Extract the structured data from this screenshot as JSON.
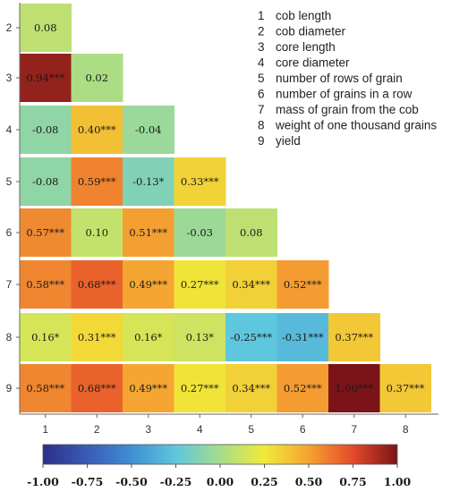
{
  "chart_data": {
    "type": "heatmap",
    "title": "",
    "xlabel": "",
    "ylabel": "",
    "x_ticks": [
      "1",
      "2",
      "3",
      "4",
      "5",
      "6",
      "7",
      "8"
    ],
    "y_ticks": [
      "2",
      "3",
      "4",
      "5",
      "6",
      "7",
      "8",
      "9"
    ],
    "legend": [
      {
        "num": "1",
        "label": "cob length"
      },
      {
        "num": "2",
        "label": "cob diameter"
      },
      {
        "num": "3",
        "label": "core length"
      },
      {
        "num": "4",
        "label": "core diameter"
      },
      {
        "num": "5",
        "label": "number of rows of grain"
      },
      {
        "num": "6",
        "label": "number of grains in a row"
      },
      {
        "num": "7",
        "label": "mass of grain from the cob"
      },
      {
        "num": "8",
        "label": "weight of one thousand grains"
      },
      {
        "num": "9",
        "label": "yield"
      }
    ],
    "rows": [
      {
        "y": "2",
        "cells": [
          {
            "x": "1",
            "value": 0.08,
            "text": "0.08"
          }
        ]
      },
      {
        "y": "3",
        "cells": [
          {
            "x": "1",
            "value": 0.94,
            "text": "0.94***"
          },
          {
            "x": "2",
            "value": 0.02,
            "text": "0.02"
          }
        ]
      },
      {
        "y": "4",
        "cells": [
          {
            "x": "1",
            "value": -0.08,
            "text": "-0.08"
          },
          {
            "x": "2",
            "value": 0.4,
            "text": "0.40***"
          },
          {
            "x": "3",
            "value": -0.04,
            "text": "-0.04"
          }
        ]
      },
      {
        "y": "5",
        "cells": [
          {
            "x": "1",
            "value": -0.08,
            "text": "-0.08"
          },
          {
            "x": "2",
            "value": 0.59,
            "text": "0.59***"
          },
          {
            "x": "3",
            "value": -0.13,
            "text": "-0.13*"
          },
          {
            "x": "4",
            "value": 0.33,
            "text": "0.33***"
          }
        ]
      },
      {
        "y": "6",
        "cells": [
          {
            "x": "1",
            "value": 0.57,
            "text": "0.57***"
          },
          {
            "x": "2",
            "value": 0.1,
            "text": "0.10"
          },
          {
            "x": "3",
            "value": 0.51,
            "text": "0.51***"
          },
          {
            "x": "4",
            "value": -0.03,
            "text": "-0.03"
          },
          {
            "x": "5",
            "value": 0.08,
            "text": "0.08"
          }
        ]
      },
      {
        "y": "7",
        "cells": [
          {
            "x": "1",
            "value": 0.58,
            "text": "0.58***"
          },
          {
            "x": "2",
            "value": 0.68,
            "text": "0.68***"
          },
          {
            "x": "3",
            "value": 0.49,
            "text": "0.49***"
          },
          {
            "x": "4",
            "value": 0.27,
            "text": "0.27***"
          },
          {
            "x": "5",
            "value": 0.34,
            "text": "0.34***"
          },
          {
            "x": "6",
            "value": 0.52,
            "text": "0.52***"
          }
        ]
      },
      {
        "y": "8",
        "cells": [
          {
            "x": "1",
            "value": 0.16,
            "text": "0.16*"
          },
          {
            "x": "2",
            "value": 0.31,
            "text": "0.31***"
          },
          {
            "x": "3",
            "value": 0.16,
            "text": "0.16*"
          },
          {
            "x": "4",
            "value": 0.13,
            "text": "0.13*"
          },
          {
            "x": "5",
            "value": -0.25,
            "text": "-0.25***"
          },
          {
            "x": "6",
            "value": -0.31,
            "text": "-0.31***"
          },
          {
            "x": "7",
            "value": 0.37,
            "text": "0.37***"
          }
        ]
      },
      {
        "y": "9",
        "cells": [
          {
            "x": "1",
            "value": 0.58,
            "text": "0.58***"
          },
          {
            "x": "2",
            "value": 0.68,
            "text": "0.68***"
          },
          {
            "x": "3",
            "value": 0.49,
            "text": "0.49***"
          },
          {
            "x": "4",
            "value": 0.27,
            "text": "0.27***"
          },
          {
            "x": "5",
            "value": 0.34,
            "text": "0.34***"
          },
          {
            "x": "6",
            "value": 0.52,
            "text": "0.52***"
          },
          {
            "x": "7",
            "value": 1.0,
            "text": "1.00***"
          },
          {
            "x": "8",
            "value": 0.37,
            "text": "0.37***"
          }
        ]
      }
    ],
    "colorbar": {
      "range": [
        -1.0,
        1.0
      ],
      "ticks": [
        "-1.00",
        "-0.75",
        "-0.50",
        "-0.25",
        "0.00",
        "0.25",
        "0.50",
        "0.75",
        "1.00"
      ],
      "stops": [
        {
          "v": -1.0,
          "c": "#2b2f8a"
        },
        {
          "v": -0.75,
          "c": "#3b5bb6"
        },
        {
          "v": -0.5,
          "c": "#3f8fd2"
        },
        {
          "v": -0.25,
          "c": "#5ec7dd"
        },
        {
          "v": 0.0,
          "c": "#a6dc8c"
        },
        {
          "v": 0.25,
          "c": "#f1ea3a"
        },
        {
          "v": 0.5,
          "c": "#f5a332"
        },
        {
          "v": 0.75,
          "c": "#e4492a"
        },
        {
          "v": 1.0,
          "c": "#7a1418"
        }
      ]
    }
  }
}
